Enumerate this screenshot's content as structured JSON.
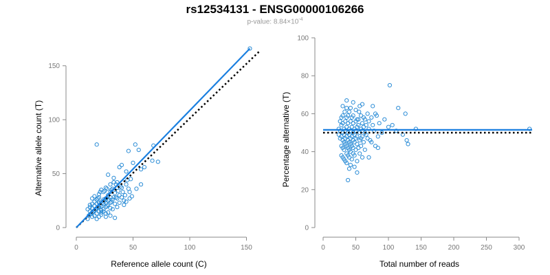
{
  "title": "rs12534131 - ENSG00000106266",
  "subtitle_prefix": "p-value: 8.84×10",
  "subtitle_exponent": "-4",
  "colors": {
    "points": "#2b8cd6",
    "fit_line": "#1a7fe0",
    "reference_line": "#000000",
    "axis": "#888888"
  },
  "chart_data": [
    {
      "type": "scatter",
      "xlabel": "Reference allele count (C)",
      "ylabel": "Alternative allele count (T)",
      "xlim": [
        0,
        160
      ],
      "ylim": [
        0,
        160
      ],
      "xticks": [
        0,
        50,
        100,
        150
      ],
      "yticks": [
        0,
        50,
        100,
        150
      ],
      "fit_line": [
        [
          0,
          0
        ],
        [
          153,
          166
        ]
      ],
      "reference_line": [
        [
          0,
          0
        ],
        [
          162,
          164
        ]
      ],
      "points": [
        [
          153,
          166
        ],
        [
          52,
          77
        ],
        [
          18,
          77
        ],
        [
          55,
          72
        ],
        [
          68,
          76
        ],
        [
          46,
          71
        ],
        [
          57,
          54
        ],
        [
          67,
          62
        ],
        [
          72,
          61
        ],
        [
          50,
          60
        ],
        [
          40,
          58
        ],
        [
          38,
          56
        ],
        [
          33,
          46
        ],
        [
          28,
          49
        ],
        [
          45,
          44
        ],
        [
          36,
          42
        ],
        [
          44,
          40
        ],
        [
          30,
          40
        ],
        [
          36,
          37
        ],
        [
          32,
          36
        ],
        [
          26,
          37
        ],
        [
          40,
          37
        ],
        [
          22,
          35
        ],
        [
          46,
          36
        ],
        [
          40,
          28
        ],
        [
          30,
          33
        ],
        [
          24,
          33
        ],
        [
          34,
          32
        ],
        [
          20,
          31
        ],
        [
          38,
          30
        ],
        [
          28,
          30
        ],
        [
          16,
          29
        ],
        [
          30,
          28
        ],
        [
          20,
          28
        ],
        [
          26,
          27
        ],
        [
          36,
          27
        ],
        [
          14,
          27
        ],
        [
          32,
          26
        ],
        [
          24,
          26
        ],
        [
          18,
          26
        ],
        [
          28,
          25
        ],
        [
          42,
          25
        ],
        [
          22,
          24
        ],
        [
          16,
          24
        ],
        [
          30,
          23
        ],
        [
          26,
          23
        ],
        [
          20,
          23
        ],
        [
          14,
          22
        ],
        [
          12,
          21
        ],
        [
          24,
          22
        ],
        [
          18,
          22
        ],
        [
          34,
          22
        ],
        [
          28,
          21
        ],
        [
          22,
          20
        ],
        [
          16,
          20
        ],
        [
          12,
          19
        ],
        [
          20,
          19
        ],
        [
          26,
          19
        ],
        [
          14,
          18
        ],
        [
          18,
          18
        ],
        [
          10,
          17
        ],
        [
          24,
          17
        ],
        [
          22,
          16
        ],
        [
          16,
          16
        ],
        [
          12,
          15
        ],
        [
          20,
          15
        ],
        [
          14,
          14
        ],
        [
          28,
          14
        ],
        [
          18,
          13
        ],
        [
          12,
          12
        ],
        [
          22,
          12
        ],
        [
          16,
          11
        ],
        [
          30,
          11
        ],
        [
          20,
          10
        ],
        [
          26,
          10
        ],
        [
          14,
          10
        ],
        [
          34,
          9
        ],
        [
          18,
          8
        ],
        [
          10,
          8
        ],
        [
          24,
          15
        ],
        [
          32,
          17
        ],
        [
          36,
          19
        ],
        [
          42,
          21
        ],
        [
          38,
          23
        ],
        [
          44,
          24
        ],
        [
          30,
          18
        ],
        [
          26,
          13
        ],
        [
          22,
          14
        ],
        [
          35,
          28
        ],
        [
          31,
          24
        ],
        [
          13,
          13
        ],
        [
          11,
          11
        ],
        [
          15,
          15
        ],
        [
          17,
          17
        ],
        [
          19,
          19
        ],
        [
          21,
          21
        ],
        [
          23,
          23
        ],
        [
          25,
          25
        ],
        [
          27,
          20
        ],
        [
          29,
          26
        ],
        [
          41,
          33
        ],
        [
          37,
          34
        ],
        [
          39,
          38
        ],
        [
          43,
          30
        ],
        [
          33,
          28
        ],
        [
          47,
          33
        ],
        [
          49,
          29
        ],
        [
          31,
          35
        ],
        [
          27,
          36
        ],
        [
          35,
          40
        ],
        [
          48,
          45
        ],
        [
          53,
          36
        ],
        [
          47,
          27
        ],
        [
          25,
          34
        ],
        [
          19,
          27
        ],
        [
          21,
          33
        ],
        [
          57,
          40
        ],
        [
          44,
          52
        ],
        [
          33,
          42
        ],
        [
          60,
          56
        ]
      ]
    },
    {
      "type": "scatter",
      "xlabel": "Total number of reads",
      "ylabel": "Percentage alternative (T)",
      "xlim": [
        0,
        320
      ],
      "ylim": [
        0,
        100
      ],
      "xticks": [
        0,
        50,
        100,
        150,
        200,
        250,
        300
      ],
      "yticks": [
        0,
        20,
        40,
        60,
        80,
        100
      ],
      "fit_line": [
        [
          0,
          51.5
        ],
        [
          320,
          51.5
        ]
      ],
      "reference_line": [
        [
          0,
          50
        ],
        [
          320,
          50
        ]
      ],
      "points": [
        [
          102,
          75
        ],
        [
          115,
          63
        ],
        [
          36,
          67
        ],
        [
          46,
          66
        ],
        [
          60,
          65
        ],
        [
          76,
          64
        ],
        [
          30,
          64
        ],
        [
          36,
          63
        ],
        [
          42,
          63
        ],
        [
          50,
          62
        ],
        [
          33,
          61
        ],
        [
          40,
          61
        ],
        [
          55,
          61
        ],
        [
          68,
          60
        ],
        [
          80,
          60
        ],
        [
          126,
          60
        ],
        [
          30,
          59
        ],
        [
          38,
          59
        ],
        [
          46,
          59
        ],
        [
          58,
          59
        ],
        [
          28,
          58
        ],
        [
          36,
          58
        ],
        [
          44,
          58
        ],
        [
          52,
          57
        ],
        [
          64,
          57
        ],
        [
          74,
          58
        ],
        [
          26,
          56
        ],
        [
          34,
          56
        ],
        [
          42,
          56
        ],
        [
          50,
          56
        ],
        [
          60,
          55
        ],
        [
          30,
          55
        ],
        [
          38,
          55
        ],
        [
          46,
          55
        ],
        [
          54,
          54
        ],
        [
          66,
          54
        ],
        [
          76,
          54
        ],
        [
          106,
          54
        ],
        [
          28,
          54
        ],
        [
          36,
          53
        ],
        [
          44,
          53
        ],
        [
          52,
          53
        ],
        [
          62,
          53
        ],
        [
          24,
          52
        ],
        [
          32,
          52
        ],
        [
          40,
          52
        ],
        [
          48,
          52
        ],
        [
          58,
          52
        ],
        [
          70,
          52
        ],
        [
          142,
          52
        ],
        [
          316,
          52
        ],
        [
          26,
          51
        ],
        [
          34,
          51
        ],
        [
          42,
          51
        ],
        [
          50,
          51
        ],
        [
          60,
          51
        ],
        [
          78,
          51
        ],
        [
          112,
          51
        ],
        [
          30,
          50
        ],
        [
          38,
          50
        ],
        [
          46,
          50
        ],
        [
          56,
          50
        ],
        [
          64,
          50
        ],
        [
          24,
          49
        ],
        [
          32,
          49
        ],
        [
          40,
          49
        ],
        [
          48,
          49
        ],
        [
          66,
          49
        ],
        [
          122,
          49
        ],
        [
          28,
          48
        ],
        [
          36,
          48
        ],
        [
          44,
          48
        ],
        [
          52,
          48
        ],
        [
          60,
          48
        ],
        [
          84,
          48
        ],
        [
          26,
          47
        ],
        [
          34,
          47
        ],
        [
          42,
          47
        ],
        [
          50,
          47
        ],
        [
          58,
          47
        ],
        [
          30,
          46
        ],
        [
          38,
          46
        ],
        [
          46,
          46
        ],
        [
          56,
          46
        ],
        [
          72,
          46
        ],
        [
          128,
          46
        ],
        [
          32,
          45
        ],
        [
          40,
          45
        ],
        [
          48,
          45
        ],
        [
          62,
          45
        ],
        [
          74,
          45
        ],
        [
          34,
          44
        ],
        [
          42,
          44
        ],
        [
          52,
          44
        ],
        [
          28,
          43
        ],
        [
          36,
          43
        ],
        [
          44,
          43
        ],
        [
          58,
          43
        ],
        [
          80,
          43
        ],
        [
          130,
          44
        ],
        [
          30,
          42
        ],
        [
          38,
          42
        ],
        [
          46,
          42
        ],
        [
          54,
          42
        ],
        [
          84,
          42
        ],
        [
          32,
          41
        ],
        [
          40,
          41
        ],
        [
          50,
          41
        ],
        [
          64,
          41
        ],
        [
          42,
          40
        ],
        [
          36,
          39
        ],
        [
          46,
          39
        ],
        [
          56,
          39
        ],
        [
          28,
          38
        ],
        [
          38,
          38
        ],
        [
          48,
          38
        ],
        [
          60,
          37
        ],
        [
          30,
          37
        ],
        [
          40,
          37
        ],
        [
          32,
          36
        ],
        [
          44,
          36
        ],
        [
          34,
          35
        ],
        [
          52,
          35
        ],
        [
          36,
          34
        ],
        [
          42,
          33
        ],
        [
          48,
          32
        ],
        [
          40,
          31
        ],
        [
          38,
          25
        ],
        [
          52,
          29
        ],
        [
          70,
          37
        ],
        [
          54,
          57
        ],
        [
          62,
          58
        ],
        [
          70,
          56
        ],
        [
          82,
          59
        ],
        [
          94,
          57
        ],
        [
          100,
          53
        ],
        [
          90,
          50
        ],
        [
          68,
          47
        ],
        [
          86,
          55
        ],
        [
          56,
          64
        ]
      ]
    }
  ]
}
